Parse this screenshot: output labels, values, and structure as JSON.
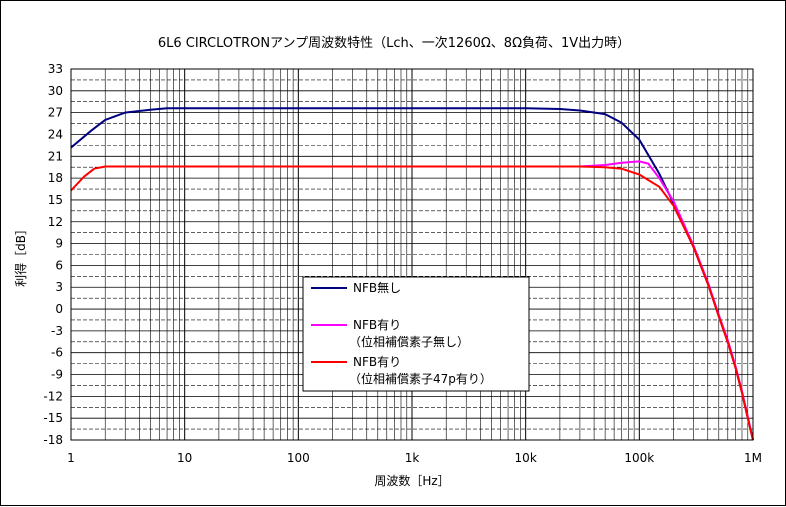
{
  "chart_data": {
    "type": "line",
    "title": "6L6 CIRCLOTRONアンプ周波数特性（Lch、一次1260Ω、8Ω負荷、1V出力時）",
    "xlabel": "周波数［Hz］",
    "ylabel": "利得［dB］",
    "x_scale": "log",
    "xlim": [
      1,
      1000000
    ],
    "ylim": [
      -18,
      33
    ],
    "x_ticks": [
      1,
      10,
      100,
      1000,
      10000,
      100000,
      1000000
    ],
    "x_tick_labels": [
      "1",
      "10",
      "100",
      "1k",
      "10k",
      "100k",
      "1M"
    ],
    "y_ticks": [
      33,
      30,
      27,
      24,
      21,
      18,
      15,
      12,
      9,
      6,
      3,
      0,
      -3,
      -6,
      -9,
      -12,
      -15,
      -18
    ],
    "y_tick_labels": [
      "33",
      "30",
      "27",
      "24",
      "21",
      "18",
      "15",
      "12",
      "9",
      "6",
      "3",
      "0",
      "-3",
      "-6",
      "-9",
      "-12",
      "-15",
      "-18"
    ],
    "grid": true,
    "legend_position": "center",
    "series": [
      {
        "name": "NFB無し",
        "color": "#000080",
        "x": [
          1,
          1.5,
          2,
          3,
          5,
          7,
          10,
          20,
          50,
          100,
          1000,
          10000,
          20000,
          30000,
          50000,
          70000,
          100000,
          150000,
          200000,
          300000,
          400000,
          500000,
          600000,
          700000,
          800000,
          900000,
          1000000
        ],
        "y": [
          22.2,
          24.5,
          26.0,
          27.0,
          27.4,
          27.6,
          27.6,
          27.6,
          27.6,
          27.6,
          27.6,
          27.6,
          27.5,
          27.3,
          26.8,
          25.6,
          23.3,
          18.6,
          14.5,
          8.5,
          3.5,
          -1.0,
          -4.5,
          -8.0,
          -11.5,
          -15.0,
          -18.0
        ]
      },
      {
        "name": "NFB有り（位相補償素子無し）",
        "color": "#ff00ff",
        "x": [
          30000,
          50000,
          70000,
          100000,
          120000,
          150000,
          200000,
          300000,
          400000,
          500000,
          600000,
          700000,
          800000,
          900000,
          1000000
        ],
        "y": [
          19.6,
          19.8,
          20.1,
          20.3,
          20.0,
          18.0,
          14.8,
          8.7,
          3.7,
          -0.8,
          -4.3,
          -7.8,
          -11.3,
          -14.8,
          -18.0
        ]
      },
      {
        "name": "NFB有り（位相補償素子47p有り）",
        "color": "#ff0000",
        "x": [
          1,
          1.3,
          1.6,
          2,
          3,
          5,
          10,
          100,
          1000,
          10000,
          30000,
          50000,
          70000,
          100000,
          150000,
          200000,
          300000,
          400000,
          500000,
          600000,
          700000,
          800000,
          900000,
          1000000
        ],
        "y": [
          16.3,
          18.2,
          19.3,
          19.6,
          19.6,
          19.6,
          19.6,
          19.6,
          19.6,
          19.6,
          19.6,
          19.5,
          19.3,
          18.5,
          16.8,
          14.2,
          8.5,
          3.5,
          -1.0,
          -4.6,
          -8.0,
          -11.5,
          -15.0,
          -18.0
        ]
      }
    ],
    "legend": {
      "entries": [
        {
          "line1": "NFB無し",
          "line2": ""
        },
        {
          "line1": "NFB有り",
          "line2": "（位相補償素子無し）"
        },
        {
          "line1": "NFB有り",
          "line2": "（位相補償素子47p有り）"
        }
      ]
    }
  }
}
